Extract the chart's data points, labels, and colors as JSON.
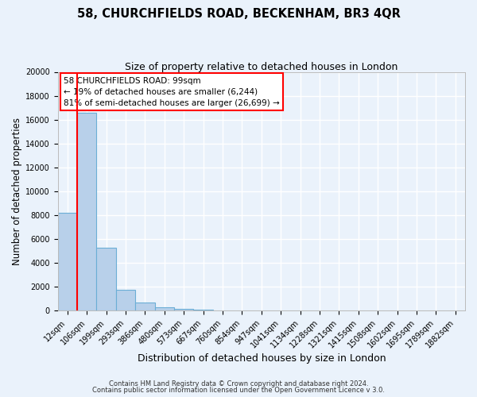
{
  "title": "58, CHURCHFIELDS ROAD, BECKENHAM, BR3 4QR",
  "subtitle": "Size of property relative to detached houses in London",
  "xlabel": "Distribution of detached houses by size in London",
  "ylabel": "Number of detached properties",
  "bar_labels": [
    "12sqm",
    "106sqm",
    "199sqm",
    "293sqm",
    "386sqm",
    "480sqm",
    "573sqm",
    "667sqm",
    "760sqm",
    "854sqm",
    "947sqm",
    "1041sqm",
    "1134sqm",
    "1228sqm",
    "1321sqm",
    "1415sqm",
    "1508sqm",
    "1602sqm",
    "1695sqm",
    "1789sqm",
    "1882sqm"
  ],
  "bar_values": [
    8200,
    16600,
    5300,
    1750,
    700,
    300,
    175,
    100,
    0,
    0,
    0,
    0,
    0,
    0,
    0,
    0,
    0,
    0,
    0,
    0,
    0
  ],
  "bar_color": "#b8d0ea",
  "bar_edge_color": "#6baed6",
  "ylim": [
    0,
    20000
  ],
  "yticks": [
    0,
    2000,
    4000,
    6000,
    8000,
    10000,
    12000,
    14000,
    16000,
    18000,
    20000
  ],
  "annotation_title": "58 CHURCHFIELDS ROAD: 99sqm",
  "annotation_line1": "← 19% of detached houses are smaller (6,244)",
  "annotation_line2": "81% of semi-detached houses are larger (26,699) →",
  "footer1": "Contains HM Land Registry data © Crown copyright and database right 2024.",
  "footer2": "Contains public sector information licensed under the Open Government Licence v 3.0.",
  "background_color": "#eaf2fb",
  "plot_bg_color": "#eaf2fb",
  "grid_color": "#d0dff0",
  "title_fontsize": 10.5,
  "subtitle_fontsize": 9,
  "tick_fontsize": 7,
  "ylabel_fontsize": 8.5,
  "xlabel_fontsize": 9
}
